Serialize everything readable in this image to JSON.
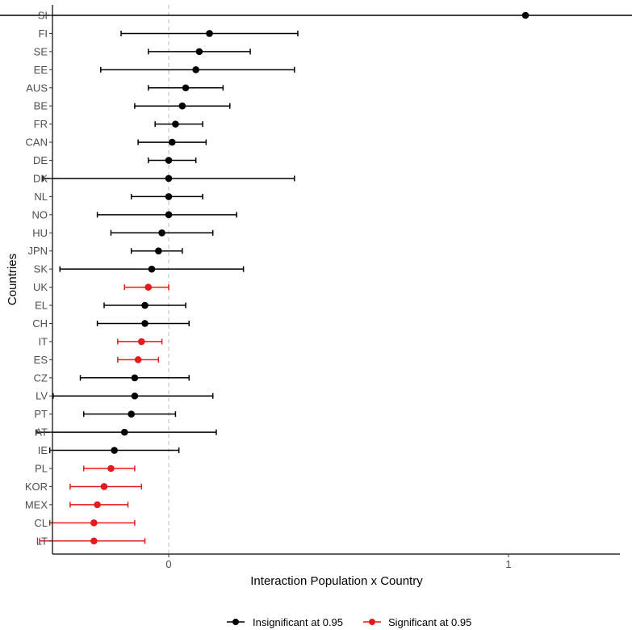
{
  "chart_data": {
    "type": "scatter",
    "subtype": "forest-plot-with-error-bars",
    "xlabel": "Interaction Population x Country",
    "ylabel": "Countries",
    "xlim": [
      -0.68,
      2.64
    ],
    "xticks": [
      0,
      1,
      2
    ],
    "reference_line": {
      "x": 0,
      "style": "dashed",
      "color": "#bdbdbd"
    },
    "grid": false,
    "legend_position": "bottom",
    "colors": {
      "insignificant": "#000000",
      "significant": "#e41a1c"
    },
    "legend": [
      {
        "key": "insignificant",
        "label": "Insignificant at 0.95"
      },
      {
        "key": "significant",
        "label": "Significant at 0.95"
      }
    ],
    "categories": [
      "SI",
      "FI",
      "SE",
      "EE",
      "AUS",
      "BE",
      "FR",
      "CAN",
      "DE",
      "DK",
      "NL",
      "NO",
      "HU",
      "JPN",
      "SK",
      "UK",
      "EL",
      "CH",
      "IT",
      "ES",
      "CZ",
      "LV",
      "PT",
      "AT",
      "IE",
      "PL",
      "KOR",
      "MEX",
      "CL",
      "LT"
    ],
    "points": [
      {
        "country": "SI",
        "estimate": 1.05,
        "low": -0.51,
        "high": 2.61,
        "significant": false
      },
      {
        "country": "FI",
        "estimate": 0.12,
        "low": -0.14,
        "high": 0.38,
        "significant": false
      },
      {
        "country": "SE",
        "estimate": 0.09,
        "low": -0.06,
        "high": 0.24,
        "significant": false
      },
      {
        "country": "EE",
        "estimate": 0.08,
        "low": -0.2,
        "high": 0.37,
        "significant": false
      },
      {
        "country": "AUS",
        "estimate": 0.05,
        "low": -0.06,
        "high": 0.16,
        "significant": false
      },
      {
        "country": "BE",
        "estimate": 0.04,
        "low": -0.1,
        "high": 0.18,
        "significant": false
      },
      {
        "country": "FR",
        "estimate": 0.02,
        "low": -0.04,
        "high": 0.1,
        "significant": false
      },
      {
        "country": "CAN",
        "estimate": 0.01,
        "low": -0.09,
        "high": 0.11,
        "significant": false
      },
      {
        "country": "DE",
        "estimate": 0.0,
        "low": -0.06,
        "high": 0.08,
        "significant": false
      },
      {
        "country": "DK",
        "estimate": 0.0,
        "low": -0.37,
        "high": 0.37,
        "significant": false
      },
      {
        "country": "NL",
        "estimate": 0.0,
        "low": -0.11,
        "high": 0.1,
        "significant": false
      },
      {
        "country": "NO",
        "estimate": 0.0,
        "low": -0.21,
        "high": 0.2,
        "significant": false
      },
      {
        "country": "HU",
        "estimate": -0.02,
        "low": -0.17,
        "high": 0.13,
        "significant": false
      },
      {
        "country": "JPN",
        "estimate": -0.03,
        "low": -0.11,
        "high": 0.04,
        "significant": false
      },
      {
        "country": "SK",
        "estimate": -0.05,
        "low": -0.32,
        "high": 0.22,
        "significant": false
      },
      {
        "country": "UK",
        "estimate": -0.06,
        "low": -0.13,
        "high": 0.0,
        "significant": true
      },
      {
        "country": "EL",
        "estimate": -0.07,
        "low": -0.19,
        "high": 0.05,
        "significant": false
      },
      {
        "country": "CH",
        "estimate": -0.07,
        "low": -0.21,
        "high": 0.06,
        "significant": false
      },
      {
        "country": "IT",
        "estimate": -0.08,
        "low": -0.15,
        "high": -0.02,
        "significant": true
      },
      {
        "country": "ES",
        "estimate": -0.09,
        "low": -0.15,
        "high": -0.03,
        "significant": true
      },
      {
        "country": "CZ",
        "estimate": -0.1,
        "low": -0.26,
        "high": 0.06,
        "significant": false
      },
      {
        "country": "LV",
        "estimate": -0.1,
        "low": -0.34,
        "high": 0.13,
        "significant": false
      },
      {
        "country": "PT",
        "estimate": -0.11,
        "low": -0.25,
        "high": 0.02,
        "significant": false
      },
      {
        "country": "AT",
        "estimate": -0.13,
        "low": -0.39,
        "high": 0.14,
        "significant": false
      },
      {
        "country": "IE",
        "estimate": -0.16,
        "low": -0.35,
        "high": 0.03,
        "significant": false
      },
      {
        "country": "PL",
        "estimate": -0.17,
        "low": -0.25,
        "high": -0.1,
        "significant": true
      },
      {
        "country": "KOR",
        "estimate": -0.19,
        "low": -0.29,
        "high": -0.08,
        "significant": true
      },
      {
        "country": "MEX",
        "estimate": -0.21,
        "low": -0.29,
        "high": -0.12,
        "significant": true
      },
      {
        "country": "CL",
        "estimate": -0.22,
        "low": -0.35,
        "high": -0.1,
        "significant": true
      },
      {
        "country": "LT",
        "estimate": -0.22,
        "low": -0.38,
        "high": -0.07,
        "significant": true
      }
    ]
  }
}
